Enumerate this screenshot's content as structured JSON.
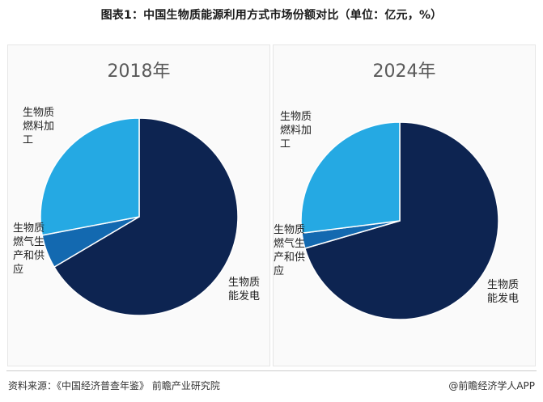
{
  "header": {
    "title": "图表1：中国生物质能源利用方式市场份额对比（单位：亿元，%）"
  },
  "colors": {
    "power": "#0d2451",
    "gas": "#1369b0",
    "fuel": "#25a9e3",
    "stroke": "#ffffff"
  },
  "chart_data": [
    {
      "type": "pie",
      "title": "2018年",
      "slices": [
        {
          "name": "生物质能发电",
          "value": 66.5,
          "color": "#0d2451"
        },
        {
          "name": "生物质燃气生产和供应",
          "value": 5.5,
          "color": "#1369b0"
        },
        {
          "name": "生物质燃料加工",
          "value": 28.0,
          "color": "#25a9e3"
        }
      ]
    },
    {
      "type": "pie",
      "title": "2024年",
      "slices": [
        {
          "name": "生物质能发电",
          "value": 70.5,
          "color": "#0d2451"
        },
        {
          "name": "生物质燃气生产和供应",
          "value": 2.5,
          "color": "#1369b0"
        },
        {
          "name": "生物质燃料加工",
          "value": 27.0,
          "color": "#25a9e3"
        }
      ]
    }
  ],
  "footer": {
    "source": "资料来源：《中国经济普查年鉴》 前瞻产业研究院",
    "brand": "@前瞻经济学人APP"
  }
}
